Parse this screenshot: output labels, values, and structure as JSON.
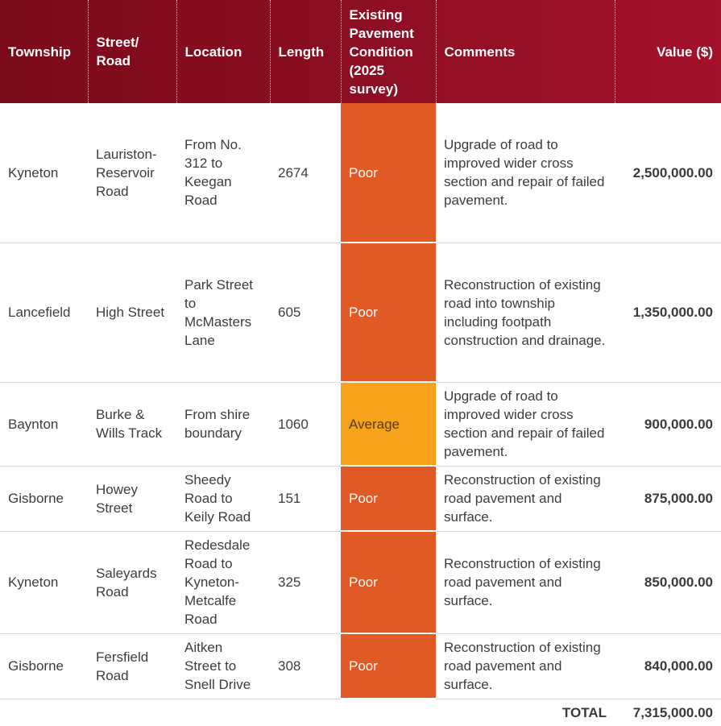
{
  "headers": [
    "Township",
    "Street/ Road",
    "Location",
    "Length",
    "Existing Pavement Condition (2025 survey)",
    "Comments",
    "Value ($)"
  ],
  "rows": [
    {
      "township": "Kyneton",
      "street": "Lauriston-Reservoir Road",
      "location": "From No. 312 to Keegan Road",
      "length": "2674",
      "condition": "Poor",
      "comments": "Upgrade of road to improved wider cross section and repair of failed pavement.",
      "value": "2,500,000.00"
    },
    {
      "township": "Lancefield",
      "street": "High Street",
      "location": "Park Street to McMasters Lane",
      "length": "605",
      "condition": "Poor",
      "comments": "Reconstruction of existing road into township including footpath construction and drainage.",
      "value": "1,350,000.00"
    },
    {
      "township": "Baynton",
      "street": "Burke & Wills Track",
      "location": "From shire boundary",
      "length": "1060",
      "condition": "Average",
      "comments": "Upgrade of road to improved wider cross section and repair of failed pavement.",
      "value": "900,000.00"
    },
    {
      "township": "Gisborne",
      "street": "Howey Street",
      "location": "Sheedy Road to Keily Road",
      "length": "151",
      "condition": "Poor",
      "comments": "Reconstruction of existing road pavement and surface.",
      "value": "875,000.00"
    },
    {
      "township": "Kyneton",
      "street": "Saleyards Road",
      "location": "Redesdale Road to Kyneton-Metcalfe Road",
      "length": "325",
      "condition": "Poor",
      "comments": "Reconstruction of existing road pavement and surface.",
      "value": "850,000.00"
    },
    {
      "township": "Gisborne",
      "street": "Fersfield Road",
      "location": "Aitken Street to Snell Drive",
      "length": "308",
      "condition": "Poor",
      "comments": "Reconstruction of existing road pavement and surface.",
      "value": "840,000.00"
    }
  ],
  "total": {
    "label": "TOTAL",
    "value": "7,315,000.00"
  },
  "colors": {
    "header_dark": "#7a0a1a",
    "header_light": "#a3112b",
    "poor": "#e05a26",
    "average": "#f7a21b"
  }
}
